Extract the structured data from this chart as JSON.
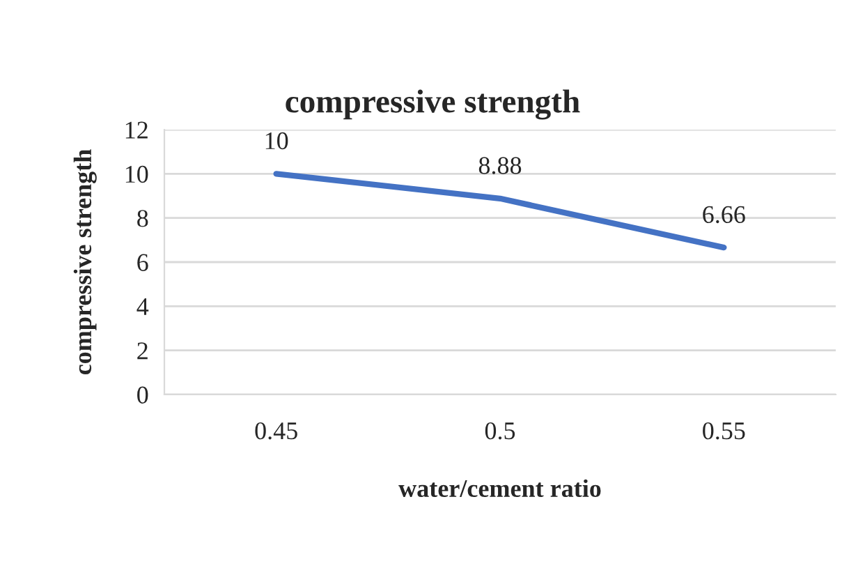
{
  "chart_data": {
    "type": "line",
    "title": "compressive strength",
    "xlabel": "water/cement ratio",
    "ylabel": "compressive strength",
    "categories": [
      "0.45",
      "0.5",
      "0.55"
    ],
    "series": [
      {
        "color": "#4472c4",
        "values": [
          10,
          8.88,
          6.66
        ]
      }
    ],
    "ylim": [
      0,
      12
    ],
    "yticks": [
      0,
      2,
      4,
      6,
      8,
      10,
      12
    ],
    "grid": "y",
    "data_labels": true,
    "marker": "none",
    "line_style": "solid"
  }
}
